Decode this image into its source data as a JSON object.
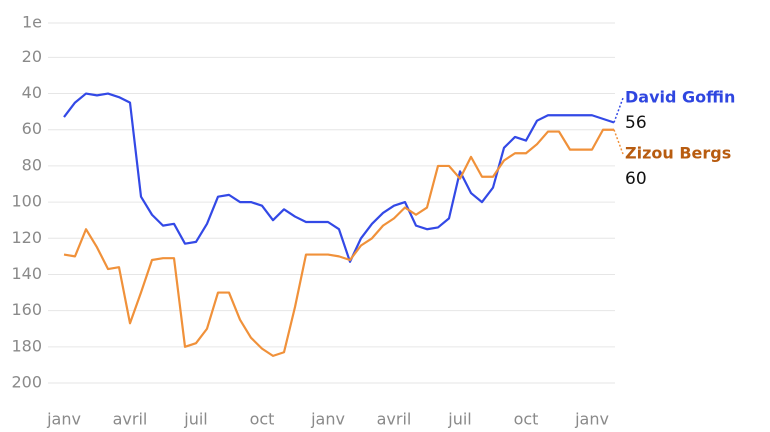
{
  "chart_data": {
    "type": "line",
    "categories": [
      "janv",
      null,
      null,
      null,
      null,
      null,
      "avril",
      null,
      null,
      null,
      null,
      null,
      "juil",
      null,
      null,
      null,
      null,
      null,
      "oct",
      null,
      null,
      null,
      null,
      null,
      "janv",
      null,
      null,
      null,
      null,
      null,
      "avril",
      null,
      null,
      null,
      null,
      null,
      "juil",
      null,
      null,
      null,
      null,
      null,
      "oct",
      null,
      null,
      null,
      null,
      null,
      "janv",
      null,
      null
    ],
    "series": [
      {
        "name": "David Goffin",
        "color": "#3349e6",
        "label_color": "#2f46e0",
        "values": [
          53,
          45,
          40,
          41,
          40,
          42,
          45,
          97,
          107,
          113,
          112,
          123,
          122,
          112,
          97,
          96,
          100,
          100,
          102,
          110,
          104,
          108,
          111,
          111,
          111,
          115,
          133,
          120,
          112,
          106,
          102,
          100,
          113,
          115,
          114,
          109,
          83,
          95,
          100,
          92,
          70,
          64,
          66,
          55,
          52,
          52,
          52,
          52,
          52,
          54,
          56
        ]
      },
      {
        "name": "Zizou Bergs",
        "color": "#f0913a",
        "label_color": "#b85c10",
        "values": [
          129,
          130,
          115,
          125,
          137,
          136,
          167,
          150,
          132,
          131,
          131,
          180,
          178,
          170,
          150,
          150,
          165,
          175,
          181,
          185,
          183,
          158,
          129,
          129,
          129,
          130,
          132,
          124,
          120,
          113,
          109,
          103,
          107,
          103,
          80,
          80,
          87,
          75,
          86,
          86,
          77,
          73,
          73,
          68,
          61,
          61,
          71,
          71,
          71,
          60,
          60
        ]
      }
    ],
    "ylim": [
      1,
      200
    ],
    "y_inverted": true,
    "yticks": [
      {
        "value": 1,
        "label": "1e"
      },
      20,
      40,
      60,
      80,
      100,
      120,
      140,
      160,
      180,
      200
    ],
    "grid": true
  }
}
